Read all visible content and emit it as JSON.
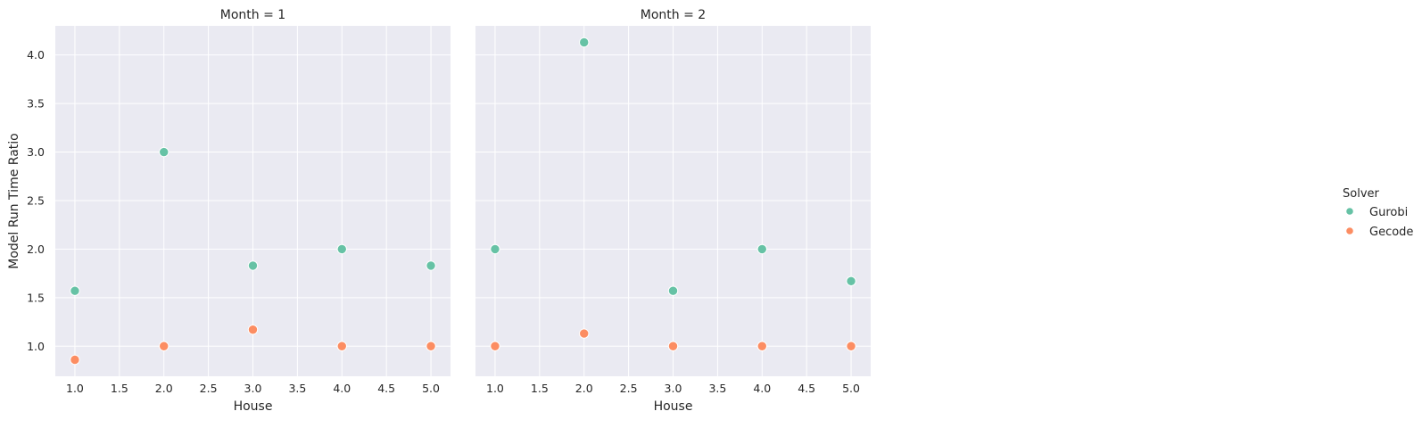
{
  "chart_data": [
    {
      "type": "scatter",
      "title": "Month = 1",
      "xlabel": "House",
      "ylabel": "Model Run Time Ratio",
      "xlim": [
        0.78,
        5.22
      ],
      "ylim": [
        0.69,
        4.3
      ],
      "xticks": [
        "1.0",
        "1.5",
        "2.0",
        "2.5",
        "3.0",
        "3.5",
        "4.0",
        "4.5",
        "5.0"
      ],
      "yticks": [
        "1.0",
        "1.5",
        "2.0",
        "2.5",
        "3.0",
        "3.5",
        "4.0"
      ],
      "grid": true,
      "series": [
        {
          "name": "Gurobi",
          "color": "#66c2a5",
          "x": [
            1,
            2,
            3,
            4,
            5
          ],
          "y": [
            1.57,
            3.0,
            1.83,
            2.0,
            1.83
          ]
        },
        {
          "name": "Gecode",
          "color": "#fc8d62",
          "x": [
            1,
            2,
            3,
            4,
            5
          ],
          "y": [
            0.86,
            1.0,
            1.17,
            1.0,
            1.0
          ]
        }
      ]
    },
    {
      "type": "scatter",
      "title": "Month = 2",
      "xlabel": "House",
      "ylabel": "",
      "xlim": [
        0.78,
        5.22
      ],
      "ylim": [
        0.69,
        4.3
      ],
      "xticks": [
        "1.0",
        "1.5",
        "2.0",
        "2.5",
        "3.0",
        "3.5",
        "4.0",
        "4.5",
        "5.0"
      ],
      "yticks": [],
      "grid": true,
      "series": [
        {
          "name": "Gurobi",
          "color": "#66c2a5",
          "x": [
            1,
            2,
            3,
            4,
            5
          ],
          "y": [
            2.0,
            4.13,
            1.57,
            2.0,
            1.67
          ]
        },
        {
          "name": "Gecode",
          "color": "#fc8d62",
          "x": [
            1,
            2,
            3,
            4,
            5
          ],
          "y": [
            1.0,
            1.13,
            1.0,
            1.0,
            1.0
          ]
        }
      ]
    }
  ],
  "legend": {
    "title": "Solver",
    "placement": "right",
    "items": [
      {
        "label": "Gurobi",
        "color": "#66c2a5"
      },
      {
        "label": "Gecode",
        "color": "#fc8d62"
      }
    ]
  },
  "style": {
    "panel_background": "#eaeaf2",
    "grid_color": "#ffffff",
    "marker_edge": "#ffffff"
  }
}
